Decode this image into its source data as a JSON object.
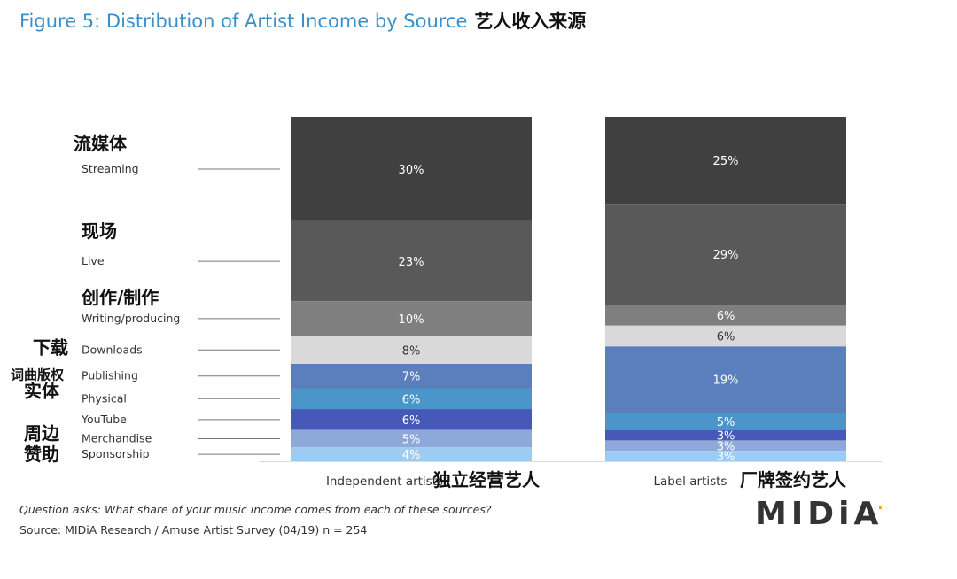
{
  "title": "Figure 5: Distribution of Artist Income by Source",
  "title_cn": "艺人收入来源",
  "chart_data": {
    "type": "bar",
    "stacked": true,
    "normalized": true,
    "categories": [
      {
        "label": "Independent artists",
        "label_cn": "独立经营艺人"
      },
      {
        "label": "Label artists",
        "label_cn": "厂牌签约艺人"
      }
    ],
    "series": [
      {
        "name": "Streaming",
        "name_cn": "流媒体",
        "color": "#404040",
        "text_color": "#ffffff",
        "values": [
          30,
          25
        ]
      },
      {
        "name": "Live",
        "name_cn": "现场",
        "color": "#595959",
        "text_color": "#ffffff",
        "values": [
          23,
          29
        ]
      },
      {
        "name": "Writing/producing",
        "name_cn": "创作/制作",
        "color": "#7f7f7f",
        "text_color": "#ffffff",
        "values": [
          10,
          6
        ]
      },
      {
        "name": "Downloads",
        "name_cn": "下载",
        "color": "#d9d9d9",
        "text_color": "#333333",
        "values": [
          8,
          6
        ]
      },
      {
        "name": "Publishing",
        "name_cn": "词曲版权",
        "color": "#5b7fbd",
        "text_color": "#ffffff",
        "values": [
          7,
          19
        ]
      },
      {
        "name": "Physical",
        "name_cn": "实体",
        "color": "#4a95c9",
        "text_color": "#ffffff",
        "values": [
          6,
          5
        ]
      },
      {
        "name": "YouTube",
        "name_cn": "",
        "color": "#4659b8",
        "text_color": "#ffffff",
        "values": [
          6,
          3
        ]
      },
      {
        "name": "Merchandise",
        "name_cn": "周边",
        "color": "#8fa8da",
        "text_color": "#ffffff",
        "values": [
          5,
          3
        ]
      },
      {
        "name": "Sponsorship",
        "name_cn": "赞助",
        "color": "#9ecbf2",
        "text_color": "#ffffff",
        "values": [
          4,
          3
        ]
      }
    ],
    "value_suffix": "%",
    "legend": "left",
    "grid": false
  },
  "notes": {
    "question": "Question asks: What share of your music income comes from each of these sources?",
    "source": "Source: MIDiA Research / Amuse Artist Survey (04/19) n = 254"
  },
  "logo": {
    "text": "MIDiA",
    "mark": "."
  }
}
